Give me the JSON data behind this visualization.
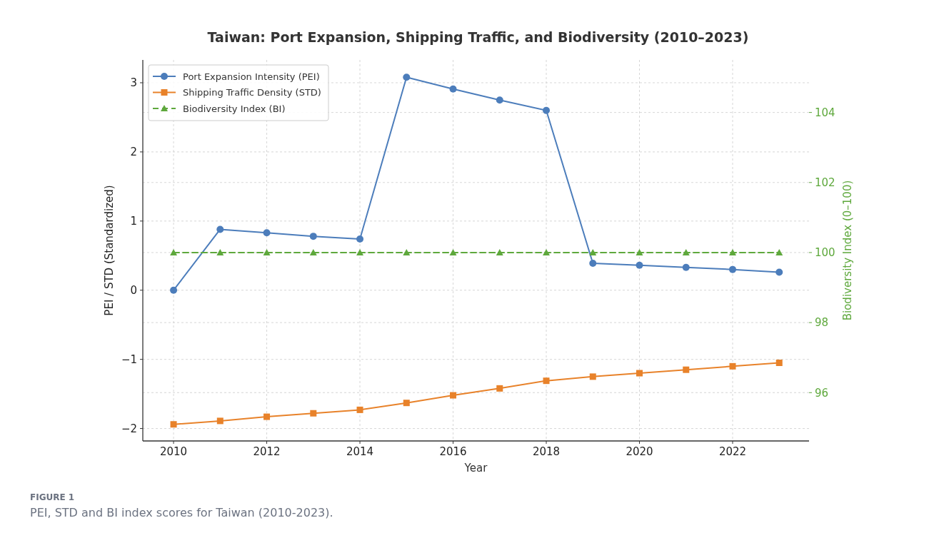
{
  "chart_data": {
    "type": "line",
    "title": "Taiwan: Port Expansion, Shipping Traffic, and Biodiversity (2010–2023)",
    "xlabel": "Year",
    "ylabel": "PEI / STD (Standardized)",
    "y2label": "Biodiversity Index (0–100)",
    "x": [
      2010,
      2011,
      2012,
      2013,
      2014,
      2015,
      2016,
      2017,
      2018,
      2019,
      2020,
      2021,
      2022,
      2023
    ],
    "xlim": [
      2009.34,
      2023.64
    ],
    "xticks": [
      2010,
      2012,
      2014,
      2016,
      2018,
      2020,
      2022
    ],
    "ylim": [
      -2.18,
      3.33
    ],
    "yticks": [
      {
        "value": -2,
        "label": "−2"
      },
      {
        "value": -1,
        "label": "−1"
      },
      0,
      1,
      2,
      3
    ],
    "y2lim": [
      94.62,
      105.5
    ],
    "y2ticks": [
      96,
      98,
      100,
      102,
      104
    ],
    "grid": true,
    "legend": "top left",
    "series": [
      {
        "name": "Port Expansion Intensity (PEI)",
        "color": "#4c7dbb",
        "marker": "circle",
        "line_style": "solid",
        "values": [
          0,
          0.88,
          0.83,
          0.78,
          0.74,
          3.08,
          2.91,
          2.75,
          2.6,
          0.39,
          0.36,
          0.33,
          0.3,
          0.26
        ]
      },
      {
        "name": "Shipping Traffic Density (STD)",
        "color": "#e8822a",
        "marker": "square",
        "line_style": "solid",
        "values": [
          -1.94,
          -1.89,
          -1.83,
          -1.78,
          -1.73,
          -1.63,
          -1.52,
          -1.42,
          -1.31,
          -1.25,
          -1.2,
          -1.15,
          -1.1,
          -1.05
        ]
      },
      {
        "name": "Biodiversity Index (BI)",
        "color": "#5ea83c",
        "marker": "triangle",
        "line_style": "dashed",
        "axis": "y2",
        "values": [
          100,
          100,
          100,
          100,
          100,
          100,
          100,
          100,
          100,
          100,
          100,
          100,
          100,
          100
        ]
      }
    ],
    "annotations": [
      "FIGURE 1",
      "PEI, STD and BI index scores for Taiwan (2010-2023)."
    ]
  }
}
